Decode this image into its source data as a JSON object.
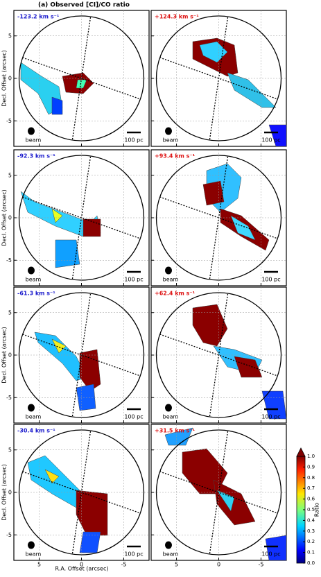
{
  "chart_data": {
    "type": "channel-maps",
    "title": "(a) Observed [CI]/CO ratio",
    "xlabel": "R.A. Offset (arcsec)",
    "ylabel": "Decl. Offset (arcsec)",
    "xlim": [
      8,
      -8
    ],
    "ylim": [
      -8,
      8
    ],
    "xticks": [
      5,
      0,
      -5
    ],
    "yticks": [
      5,
      0,
      -5
    ],
    "grid": true,
    "beam_label": "beam",
    "scalebar_label": "100 pc",
    "panels": [
      {
        "label": "-123.2 km s⁻¹",
        "color": "#1a1acc"
      },
      {
        "label": "+124.3 km s⁻¹",
        "color": "#dd1111"
      },
      {
        "label": "-92.3 km s⁻¹",
        "color": "#1a1acc"
      },
      {
        "label": "+93.4 km s⁻¹",
        "color": "#dd1111"
      },
      {
        "label": "-61.3 km s⁻¹",
        "color": "#1a1acc"
      },
      {
        "label": "+62.4 km s⁻¹",
        "color": "#dd1111"
      },
      {
        "label": "-30.4 km s⁻¹",
        "color": "#1a1acc"
      },
      {
        "label": "+31.5 km s⁻¹",
        "color": "#dd1111"
      }
    ],
    "colorbar": {
      "label": "Ratio",
      "lim": [
        0,
        1
      ],
      "ticks": [
        {
          "value": 0,
          "label": "0.0"
        },
        0.1,
        0.2,
        0.3,
        0.4,
        0.5,
        0.6,
        0.7,
        0.8,
        0.9,
        {
          "value": 1,
          "label": "1.0"
        }
      ]
    }
  }
}
